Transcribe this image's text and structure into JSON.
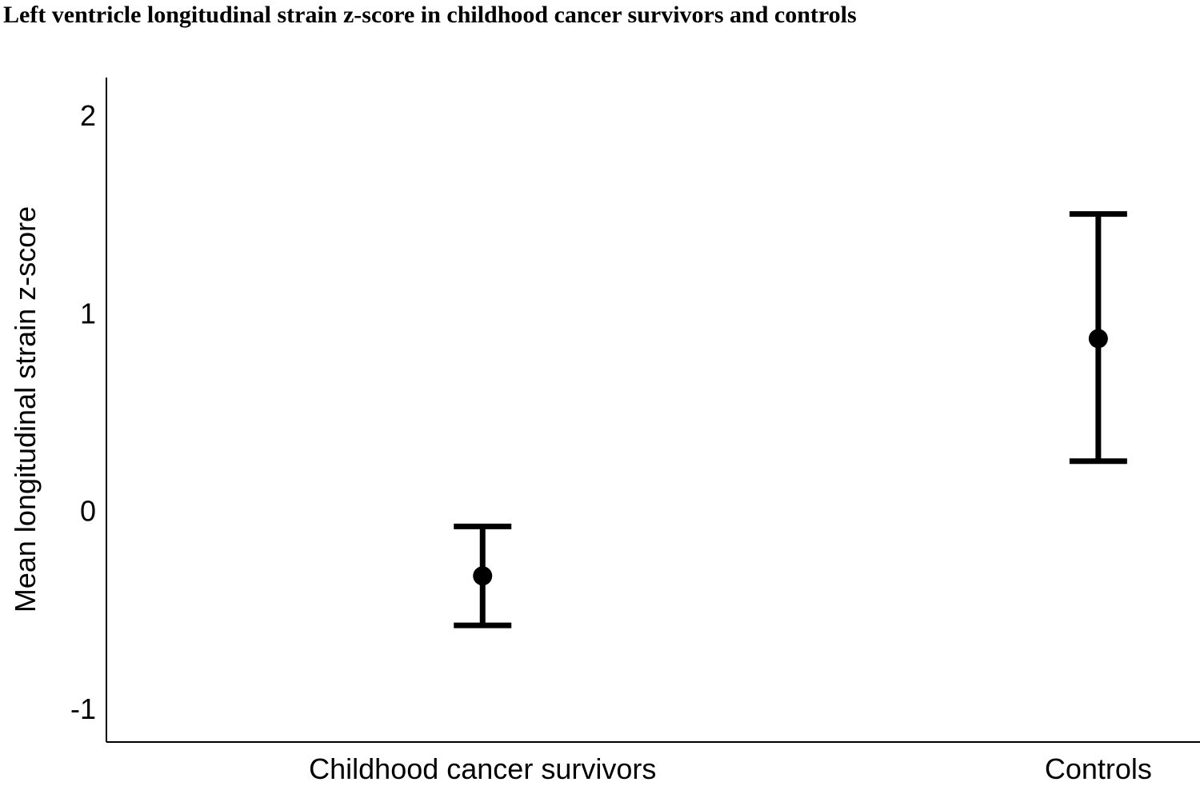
{
  "chart_data": {
    "type": "errorbar",
    "title": "Left ventricle longitudinal strain z-score in childhood cancer survivors and controls",
    "y_label": "Mean longitudinal strain z-score",
    "categories": [
      "Childhood cancer survivors",
      "Controls"
    ],
    "values": [
      -0.33,
      0.87
    ],
    "lower": [
      -0.58,
      0.25
    ],
    "upper": [
      -0.08,
      1.5
    ],
    "color": "#000000",
    "ylim": [
      -1.17,
      2.19
    ],
    "yticks": [
      -1,
      0,
      1,
      2
    ],
    "grid": false
  }
}
